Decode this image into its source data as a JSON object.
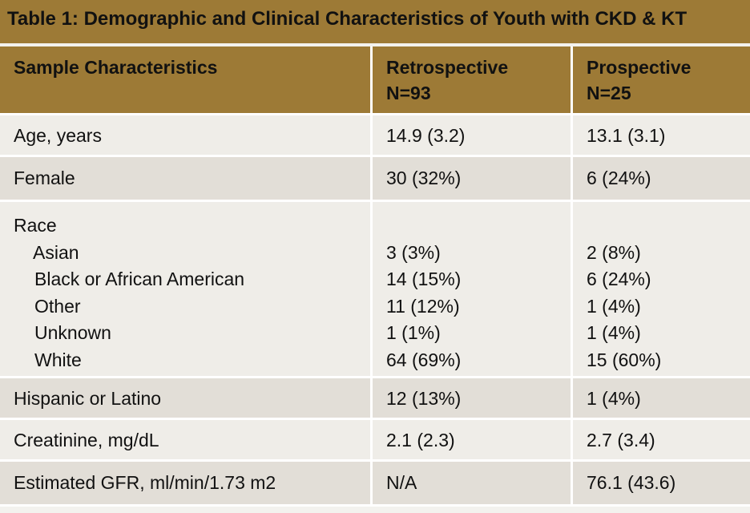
{
  "title": "Table 1: Demographic and Clinical Characteristics of Youth with CKD & KT",
  "header": {
    "col1": "Sample Characteristics",
    "col2_line1": "Retrospective",
    "col2_line2": "N=93",
    "col3_line1": "Prospective",
    "col3_line2": "N=25"
  },
  "rows": [
    {
      "label": "Age, years",
      "retro": "14.9 (3.2)",
      "pro": "13.1 (3.1)"
    },
    {
      "label": "Female",
      "retro": "30 (32%)",
      "pro": "6 (24%)"
    },
    {
      "label": "Hispanic or Latino",
      "retro": "12 (13%)",
      "pro": "1 (4%)"
    },
    {
      "label": "Creatinine, mg/dL",
      "retro": "2.1 (2.3)",
      "pro": "2.7 (3.4)"
    },
    {
      "label": "Estimated GFR, ml/min/1.73 m2",
      "retro": "N/A",
      "pro": "76.1 (43.6)"
    }
  ],
  "race": {
    "label": "Race",
    "subrows": [
      {
        "label": "Asian",
        "retro": "3 (3%)",
        "pro": "2 (8%)"
      },
      {
        "label": "Black or African American",
        "retro": "14 (15%)",
        "pro": "6 (24%)"
      },
      {
        "label": "Other",
        "retro": "11 (12%)",
        "pro": "1 (4%)"
      },
      {
        "label": "Unknown",
        "retro": "1 (1%)",
        "pro": "1 (4%)"
      },
      {
        "label": "White",
        "retro": "64 (69%)",
        "pro": "15 (60%)"
      }
    ]
  }
}
